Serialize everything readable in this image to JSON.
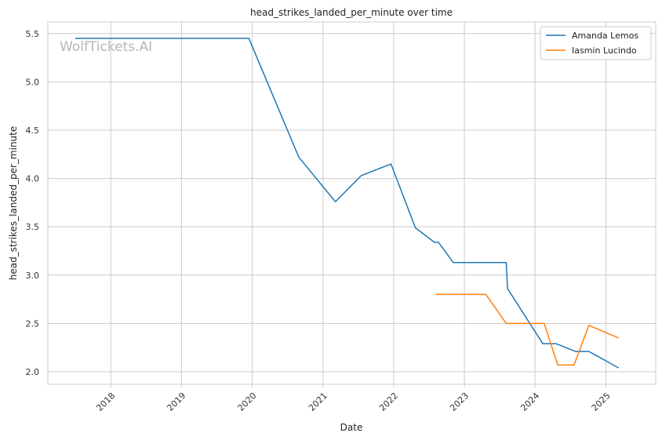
{
  "chart_data": {
    "type": "line",
    "title": "head_strikes_landed_per_minute over time",
    "xlabel": "Date",
    "ylabel": "head_strikes_landed_per_minute",
    "watermark": "WolfTickets.AI",
    "x_axis_type": "date",
    "xlim": [
      "2017-02-10",
      "2025-09-15"
    ],
    "ylim": [
      1.87,
      5.62
    ],
    "x_ticks": [
      {
        "date": "2018-01-01",
        "label": "2018"
      },
      {
        "date": "2019-01-01",
        "label": "2019"
      },
      {
        "date": "2020-01-01",
        "label": "2020"
      },
      {
        "date": "2021-01-01",
        "label": "2021"
      },
      {
        "date": "2022-01-01",
        "label": "2022"
      },
      {
        "date": "2023-01-01",
        "label": "2023"
      },
      {
        "date": "2024-01-01",
        "label": "2024"
      },
      {
        "date": "2025-01-01",
        "label": "2025"
      }
    ],
    "y_ticks": [
      {
        "value": 2.0,
        "label": "2.0"
      },
      {
        "value": 2.5,
        "label": "2.5"
      },
      {
        "value": 3.0,
        "label": "3.0"
      },
      {
        "value": 3.5,
        "label": "3.5"
      },
      {
        "value": 4.0,
        "label": "4.0"
      },
      {
        "value": 4.5,
        "label": "4.5"
      },
      {
        "value": 5.0,
        "label": "5.0"
      },
      {
        "value": 5.5,
        "label": "5.5"
      }
    ],
    "grid": true,
    "legend_position": "top-right",
    "series": [
      {
        "name": "Amanda Lemos",
        "color": "#1f77b4",
        "points": [
          {
            "x": "2017-07-01",
            "y": 5.45
          },
          {
            "x": "2019-12-15",
            "y": 5.45
          },
          {
            "x": "2020-08-29",
            "y": 4.22
          },
          {
            "x": "2021-03-06",
            "y": 3.76
          },
          {
            "x": "2021-07-17",
            "y": 4.03
          },
          {
            "x": "2021-12-18",
            "y": 4.15
          },
          {
            "x": "2022-04-23",
            "y": 3.49
          },
          {
            "x": "2022-07-30",
            "y": 3.34
          },
          {
            "x": "2022-08-20",
            "y": 3.34
          },
          {
            "x": "2022-11-05",
            "y": 3.13
          },
          {
            "x": "2023-08-05",
            "y": 3.13
          },
          {
            "x": "2023-08-12",
            "y": 2.86
          },
          {
            "x": "2024-02-10",
            "y": 2.29
          },
          {
            "x": "2024-04-20",
            "y": 2.29
          },
          {
            "x": "2024-07-27",
            "y": 2.21
          },
          {
            "x": "2024-10-05",
            "y": 2.21
          },
          {
            "x": "2025-03-08",
            "y": 2.04
          }
        ]
      },
      {
        "name": "Iasmin Lucindo",
        "color": "#ff7f0e",
        "points": [
          {
            "x": "2022-08-06",
            "y": 2.8
          },
          {
            "x": "2023-04-22",
            "y": 2.8
          },
          {
            "x": "2023-08-05",
            "y": 2.5
          },
          {
            "x": "2024-02-17",
            "y": 2.5
          },
          {
            "x": "2024-04-27",
            "y": 2.07
          },
          {
            "x": "2024-07-20",
            "y": 2.07
          },
          {
            "x": "2024-10-05",
            "y": 2.48
          },
          {
            "x": "2025-03-08",
            "y": 2.35
          }
        ]
      }
    ]
  }
}
